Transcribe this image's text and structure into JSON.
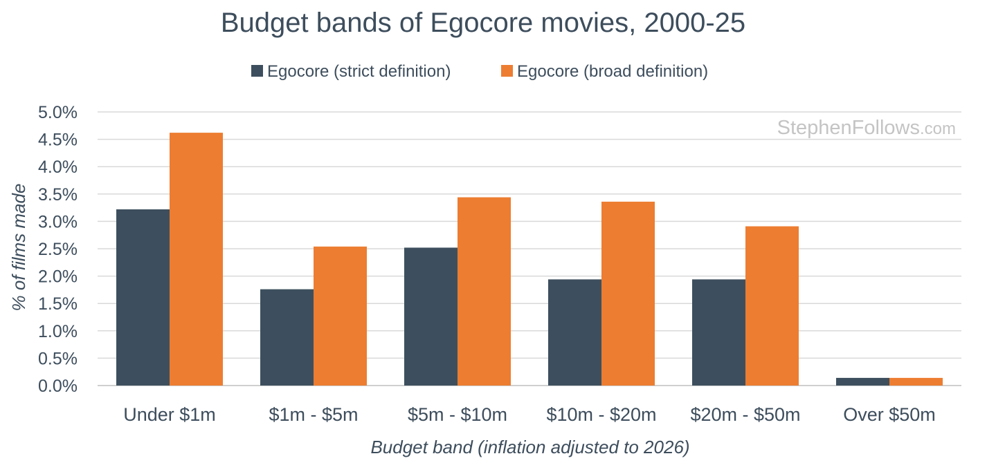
{
  "chart_data": {
    "type": "bar",
    "title": "Budget bands of Egocore movies, 2000-25",
    "xlabel": "Budget band (inflation adjusted to 2026)",
    "ylabel": "% of films made",
    "categories": [
      "Under $1m",
      "$1m - $5m",
      "$5m - $10m",
      "$10m - $20m",
      "$20m - $50m",
      "Over $50m"
    ],
    "series": [
      {
        "name": "Egocore (strict definition)",
        "color": "#3d4f5e",
        "values": [
          3.22,
          1.76,
          2.52,
          1.94,
          1.94,
          0.14
        ]
      },
      {
        "name": "Egocore (broad definition)",
        "color": "#ed7d31",
        "values": [
          4.62,
          2.54,
          3.44,
          3.36,
          2.91,
          0.14
        ]
      }
    ],
    "ylim": [
      0,
      5.0
    ],
    "yticks": [
      "0.0%",
      "0.5%",
      "1.0%",
      "1.5%",
      "2.0%",
      "2.5%",
      "3.0%",
      "3.5%",
      "4.0%",
      "4.5%",
      "5.0%"
    ],
    "ytick_values": [
      0,
      0.5,
      1.0,
      1.5,
      2.0,
      2.5,
      3.0,
      3.5,
      4.0,
      4.5,
      5.0
    ],
    "grid": true,
    "legend": "top"
  },
  "watermark": {
    "main": "StephenFollows",
    "suffix": ".com"
  }
}
